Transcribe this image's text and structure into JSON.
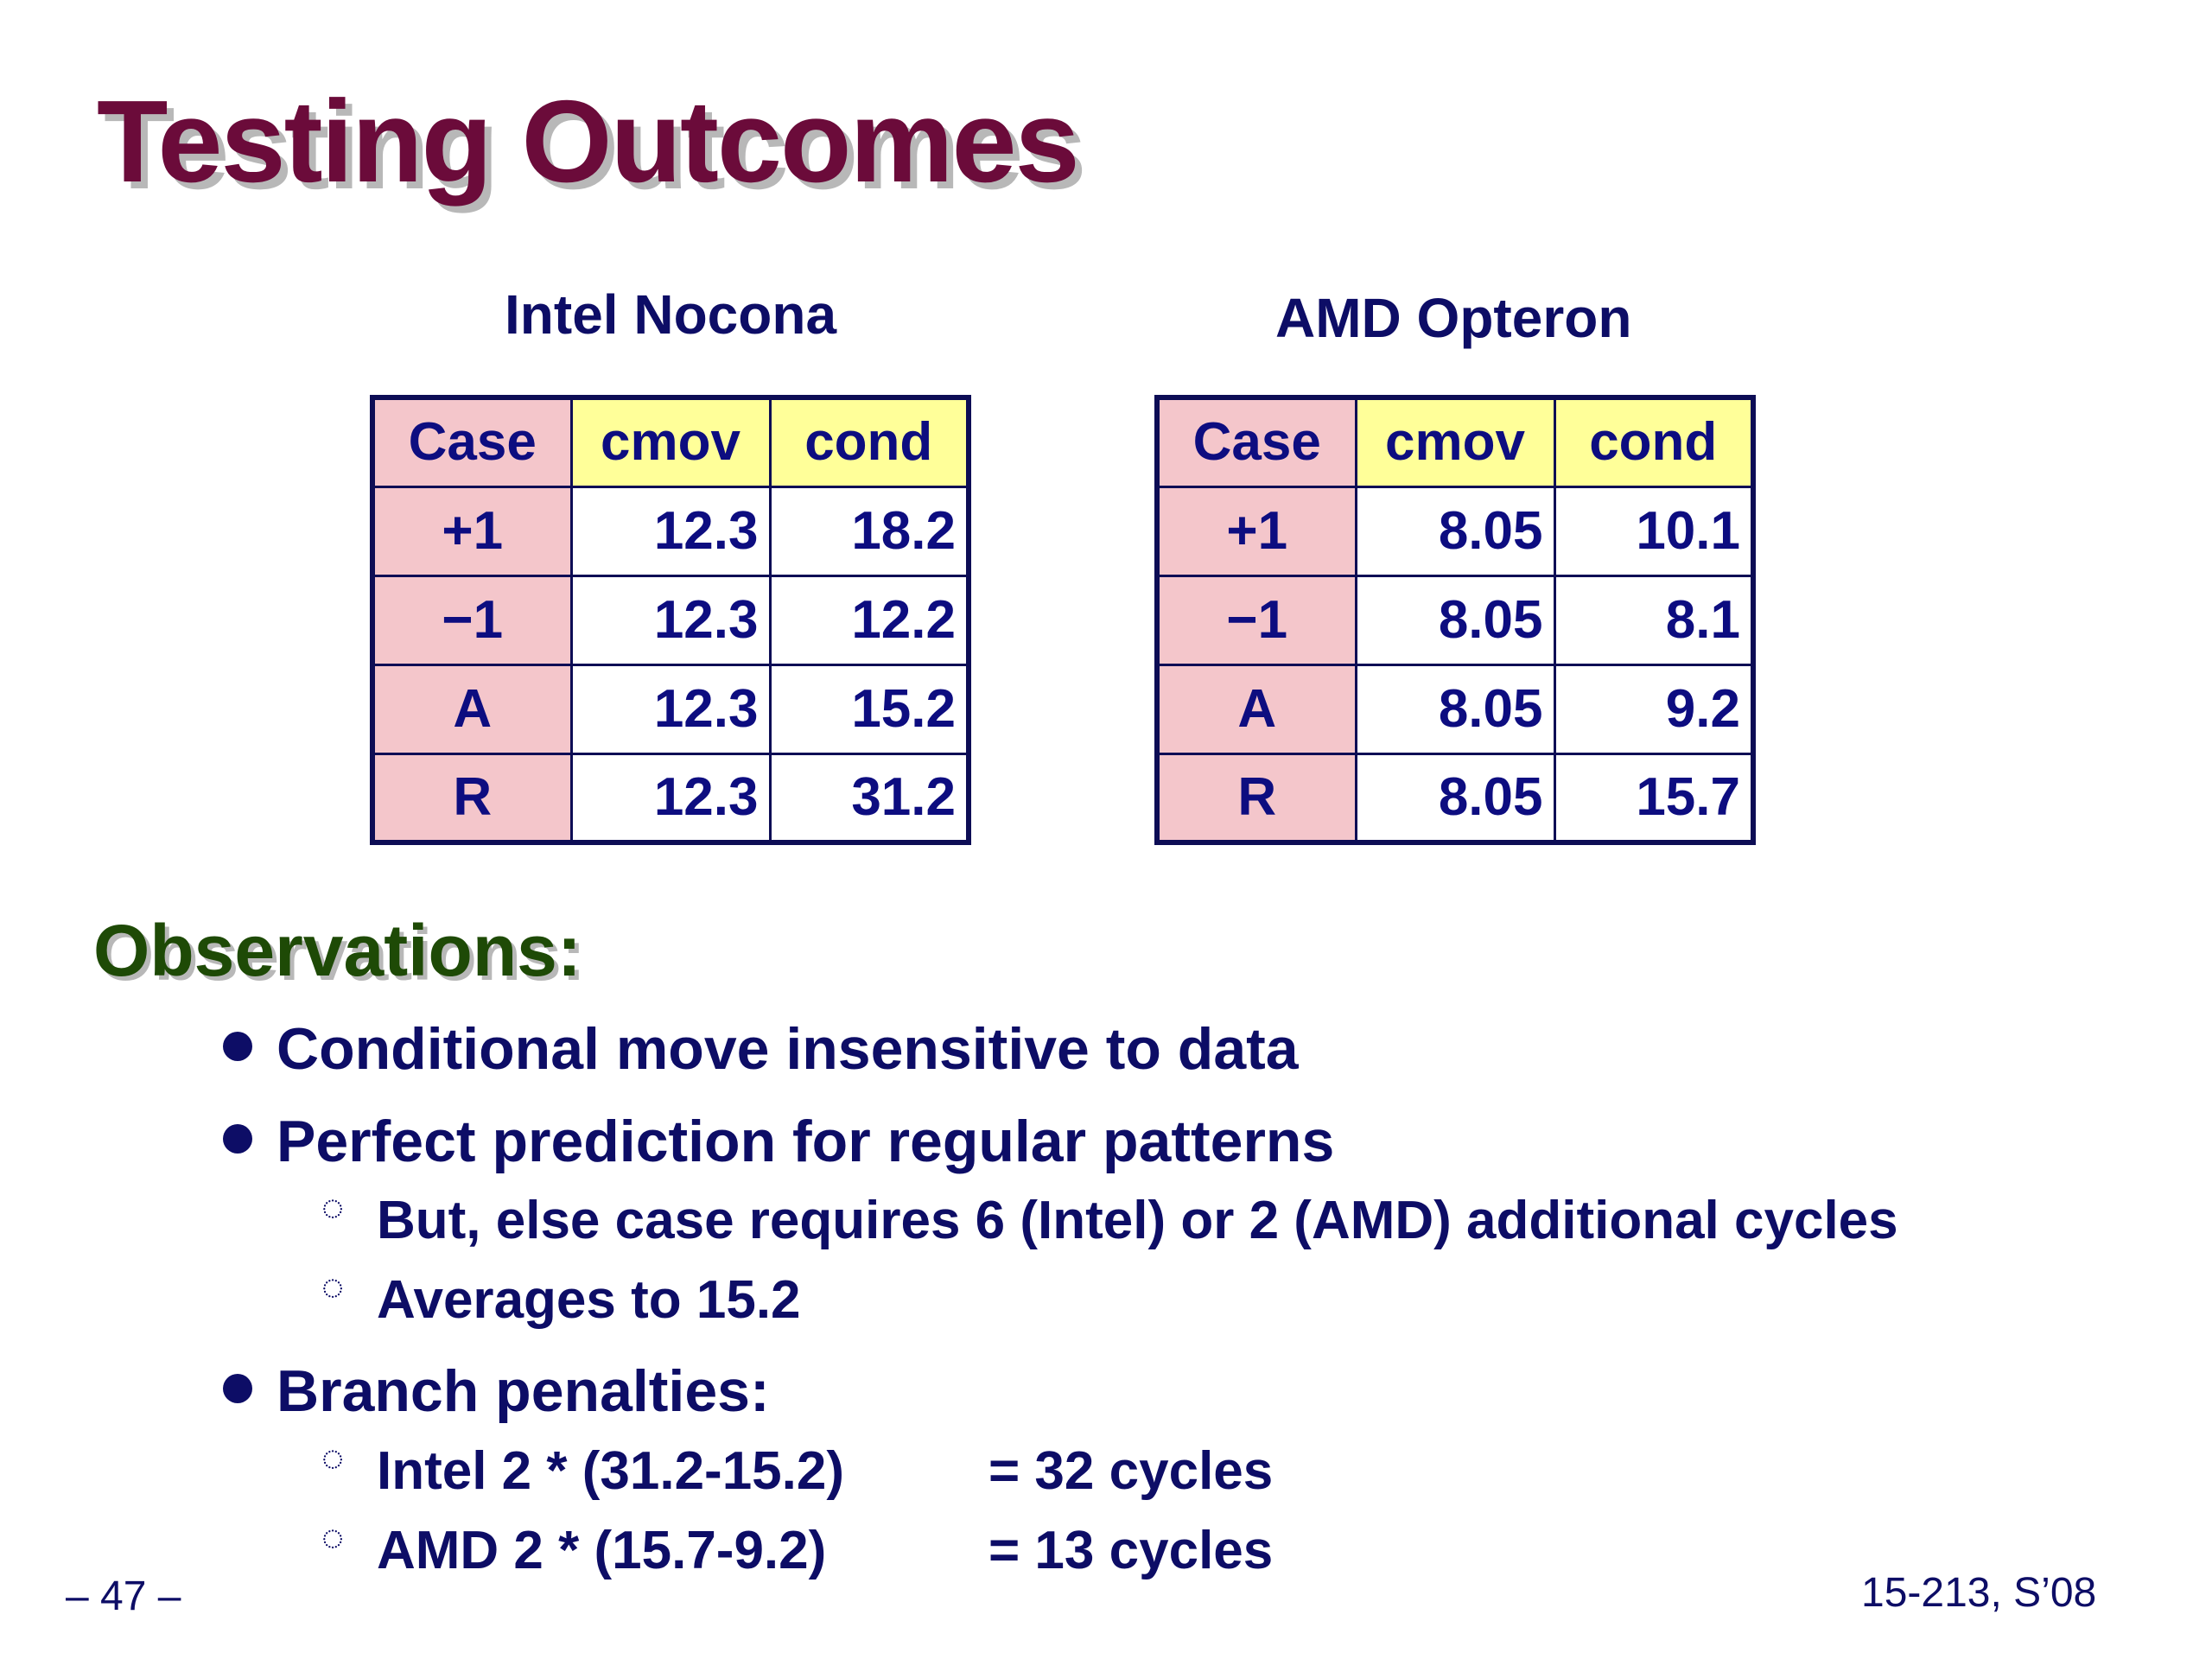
{
  "title": "Testing Outcomes",
  "tables": [
    {
      "caption": "Intel Nocona",
      "headers": [
        "Case",
        "cmov",
        "cond"
      ],
      "rows": [
        [
          "+1",
          "12.3",
          "18.2"
        ],
        [
          "−1",
          "12.3",
          "12.2"
        ],
        [
          "A",
          "12.3",
          "15.2"
        ],
        [
          "R",
          "12.3",
          "31.2"
        ]
      ]
    },
    {
      "caption": "AMD Opteron",
      "headers": [
        "Case",
        "cmov",
        "cond"
      ],
      "rows": [
        [
          "+1",
          "8.05",
          "10.1"
        ],
        [
          "−1",
          "8.05",
          "8.1"
        ],
        [
          "A",
          "8.05",
          "9.2"
        ],
        [
          "R",
          "8.05",
          "15.7"
        ]
      ]
    }
  ],
  "observations": {
    "heading": "Observations:",
    "bullets": [
      "Conditional move insensitive to data",
      "Perfect prediction for regular patterns",
      "Branch penalties:"
    ],
    "sub_bullets_prediction": [
      "But, else case requires 6 (Intel) or 2 (AMD) additional cycles",
      "Averages to 15.2"
    ],
    "sub_bullets_penalties": [
      {
        "expr": "Intel 2 * (31.2-15.2)",
        "result": "= 32 cycles"
      },
      {
        "expr": "AMD 2 * (15.7-9.2)",
        "result": "= 13 cycles"
      }
    ],
    "sub_marker": "◌"
  },
  "footer": {
    "page": "– 47 –",
    "course": "15-213, S’08"
  },
  "colors": {
    "title": "#6b0b3a",
    "heading": "#1e4a06",
    "text": "#0d0d66",
    "header_fill": "#ffff99",
    "case_fill": "#f4c6cb"
  }
}
